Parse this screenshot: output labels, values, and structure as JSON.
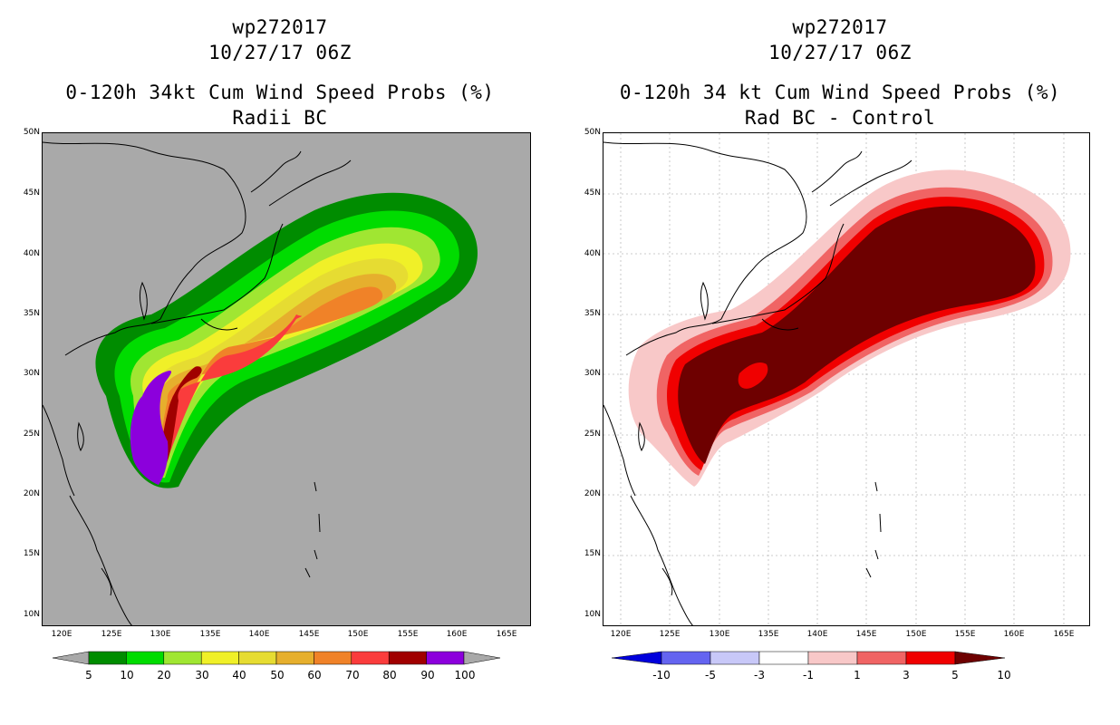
{
  "left": {
    "title_line1": "wp272017",
    "title_line2": "10/27/17 06Z",
    "title_line3": "0-120h 34kt Cum Wind Speed Probs (%)",
    "title_line4": "Radii BC",
    "y_ticks": [
      "50N",
      "45N",
      "40N",
      "35N",
      "30N",
      "25N",
      "20N",
      "15N",
      "10N"
    ],
    "x_ticks": [
      "120E",
      "125E",
      "130E",
      "135E",
      "140E",
      "145E",
      "150E",
      "155E",
      "160E",
      "165E"
    ],
    "colorbar_labels": [
      "5",
      "10",
      "20",
      "30",
      "40",
      "50",
      "60",
      "70",
      "80",
      "90",
      "100"
    ],
    "colorbar_colors": [
      "#008c00",
      "#00dc00",
      "#a0e632",
      "#f0f028",
      "#e6dc32",
      "#e6af2d",
      "#f08228",
      "#fa3c3c",
      "#a00000",
      "#8c00dc"
    ]
  },
  "right": {
    "title_line1": "wp272017",
    "title_line2": "10/27/17 06Z",
    "title_line3": "0-120h 34 kt Cum Wind Speed Probs (%)",
    "title_line4": "Rad BC - Control",
    "y_ticks": [
      "50N",
      "45N",
      "40N",
      "35N",
      "30N",
      "25N",
      "20N",
      "15N",
      "10N"
    ],
    "x_ticks": [
      "120E",
      "125E",
      "130E",
      "135E",
      "140E",
      "145E",
      "150E",
      "155E",
      "160E",
      "165E"
    ],
    "colorbar_labels": [
      "-10",
      "-5",
      "-3",
      "-1",
      "1",
      "3",
      "5",
      "10"
    ],
    "colorbar_colors": [
      "#0000dc",
      "#6464f0",
      "#c8c8f8",
      "#ffffff",
      "#f8c8c8",
      "#f06464",
      "#f00000",
      "#6e0000"
    ]
  }
}
